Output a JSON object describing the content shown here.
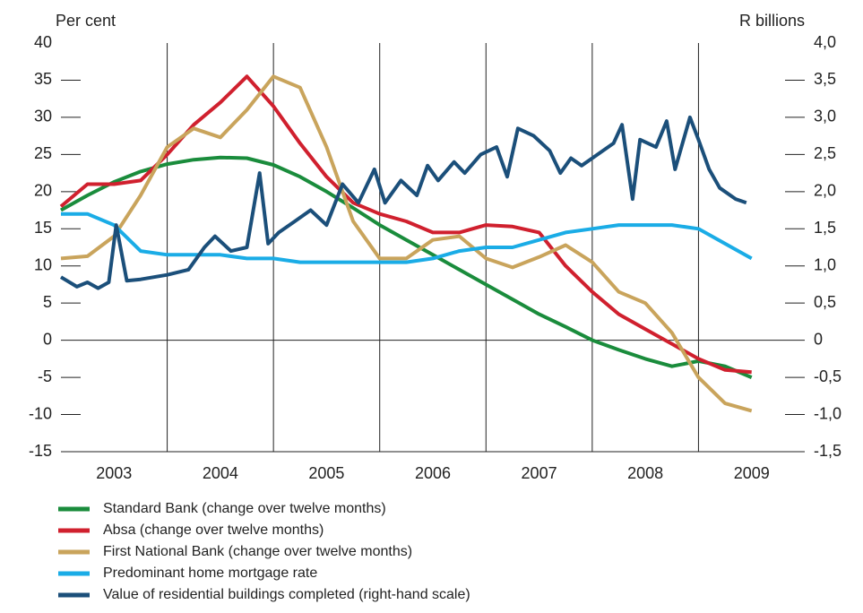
{
  "chart_data": {
    "type": "line",
    "y_label": "Per cent",
    "y2_label": "R billions",
    "xlim": [
      2003,
      2010
    ],
    "xticks": [
      2003,
      2004,
      2005,
      2006,
      2007,
      2008,
      2009
    ],
    "ylim": [
      -15,
      40
    ],
    "yticks": [
      -15,
      -10,
      -5,
      0,
      5,
      10,
      15,
      20,
      25,
      30,
      35,
      40
    ],
    "y2lim": [
      -1.5,
      4.0
    ],
    "y2ticks": [
      {
        "value": -1.5,
        "label": "-1,5"
      },
      {
        "value": -1.0,
        "label": "-1,0"
      },
      {
        "value": -0.5,
        "label": "-0,5"
      },
      0,
      {
        "value": 0.5,
        "label": "0,5"
      },
      {
        "value": 1.0,
        "label": "1,0"
      },
      {
        "value": 1.5,
        "label": "1,5"
      },
      {
        "value": 2.0,
        "label": "2,0"
      },
      {
        "value": 2.5,
        "label": "2,5"
      },
      {
        "value": 3.0,
        "label": "3,0"
      },
      {
        "value": 3.5,
        "label": "3,5"
      },
      {
        "value": 4.0,
        "label": "4,0"
      }
    ],
    "x": [
      2003,
      2003.25,
      2003.5,
      2003.75,
      2004,
      2004.25,
      2004.5,
      2004.75,
      2005,
      2005.25,
      2005.5,
      2005.75,
      2006,
      2006.25,
      2006.5,
      2006.75,
      2007,
      2007.25,
      2007.5,
      2007.75,
      2008,
      2008.25,
      2008.5,
      2008.75,
      2009,
      2009.25,
      2009.5
    ],
    "series": [
      {
        "name": "Standard Bank (change over twelve months)",
        "color": "#1a8c3c",
        "values": [
          17.5,
          19.5,
          21.3,
          22.7,
          23.7,
          24.3,
          24.6,
          24.5,
          23.6,
          22,
          20,
          17.8,
          15.5,
          13.5,
          11.5,
          9.5,
          7.5,
          5.5,
          3.5,
          1.8,
          0,
          -1.3,
          -2.5,
          -3.5,
          -2.8,
          -3.5,
          -5
        ]
      },
      {
        "name": "Absa (change over twelve months)",
        "color": "#d0202e",
        "values": [
          18,
          21,
          21,
          21.5,
          25,
          29,
          32,
          35.5,
          31.5,
          26.5,
          22,
          18.5,
          17,
          16,
          14.5,
          14.5,
          15.5,
          15.3,
          14.5,
          10,
          6.5,
          3.5,
          1.5,
          -0.5,
          -2.5,
          -4,
          -4.3
        ]
      },
      {
        "name": "First National Bank (change over twelve months)",
        "color": "#c9a45c",
        "values": [
          11,
          11.3,
          14,
          19.5,
          26,
          28.5,
          27.3,
          31,
          35.5,
          34,
          26,
          16,
          11,
          11,
          13.5,
          14,
          11,
          9.8,
          11.2,
          12.8,
          10.5,
          6.5,
          5,
          1,
          -5,
          -8.5,
          -9.5
        ]
      },
      {
        "name": "Predominant home mortgage rate",
        "color": "#1aace6",
        "values": [
          17,
          17,
          15.5,
          12,
          11.5,
          11.5,
          11.5,
          11,
          11,
          10.5,
          10.5,
          10.5,
          10.5,
          10.5,
          11,
          12,
          12.5,
          12.5,
          13.5,
          14.5,
          15,
          15.5,
          15.5,
          15.5,
          15,
          13,
          11
        ]
      },
      {
        "name": "Value of residential buildings completed (right-hand scale)",
        "color": "#1b4f7a",
        "axis": "y2",
        "x": [
          2003,
          2003.15,
          2003.25,
          2003.35,
          2003.45,
          2003.52,
          2003.62,
          2003.75,
          2004,
          2004.2,
          2004.35,
          2004.45,
          2004.6,
          2004.75,
          2004.87,
          2004.95,
          2005.05,
          2005.2,
          2005.35,
          2005.5,
          2005.65,
          2005.8,
          2005.95,
          2006.05,
          2006.2,
          2006.35,
          2006.45,
          2006.55,
          2006.7,
          2006.8,
          2006.95,
          2007.1,
          2007.2,
          2007.3,
          2007.45,
          2007.6,
          2007.7,
          2007.8,
          2007.9,
          2008.05,
          2008.2,
          2008.28,
          2008.38,
          2008.45,
          2008.6,
          2008.7,
          2008.78,
          2008.92,
          2009,
          2009.1,
          2009.2,
          2009.35,
          2009.45
        ],
        "values": [
          0.85,
          0.72,
          0.78,
          0.7,
          0.78,
          1.55,
          0.8,
          0.82,
          0.88,
          0.95,
          1.25,
          1.4,
          1.2,
          1.25,
          2.25,
          1.3,
          1.45,
          1.6,
          1.75,
          1.55,
          2.1,
          1.85,
          2.3,
          1.85,
          2.15,
          1.95,
          2.35,
          2.15,
          2.4,
          2.25,
          2.5,
          2.6,
          2.2,
          2.85,
          2.75,
          2.55,
          2.25,
          2.45,
          2.35,
          2.5,
          2.65,
          2.9,
          1.9,
          2.7,
          2.6,
          2.95,
          2.3,
          3.0,
          2.7,
          2.3,
          2.05,
          1.9,
          1.85
        ]
      }
    ]
  }
}
